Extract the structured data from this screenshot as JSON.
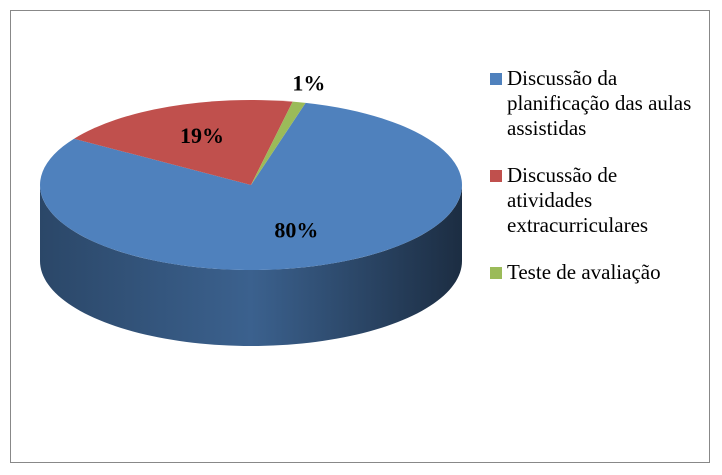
{
  "chart_data": {
    "type": "pie",
    "categories": [
      "Discussão da planificação das aulas assistidas",
      "Discussão de atividades extracurriculares",
      "Teste de avaliação"
    ],
    "values": [
      80,
      19,
      1
    ],
    "value_labels": [
      "80%",
      "19%",
      "1%"
    ],
    "colors": [
      "#4f81bd",
      "#c0504d",
      "#9bbb59"
    ],
    "legend": "right"
  }
}
